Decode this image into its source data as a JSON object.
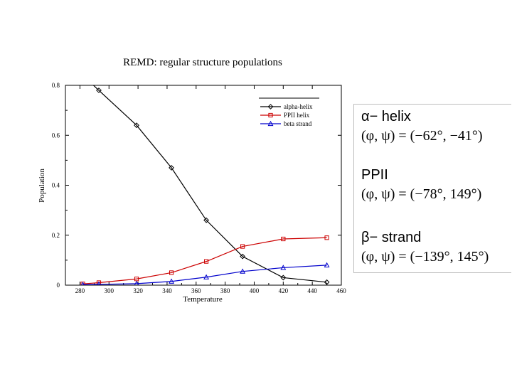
{
  "chart_data": {
    "type": "line",
    "title": "REMD: regular structure populations",
    "xlabel": "Temperature",
    "ylabel": "Population",
    "xlim": [
      270,
      460
    ],
    "ylim": [
      0,
      0.8
    ],
    "xticks": [
      "280",
      "300",
      "320",
      "340",
      "360",
      "380",
      "400",
      "420",
      "440",
      "460"
    ],
    "yticks": [
      "0",
      "0.2",
      "0.4",
      "0.6",
      "0.8"
    ],
    "legend_position": "top-right",
    "series": [
      {
        "name": "alpha-helix",
        "color": "#000000",
        "marker": "diamond",
        "x": [
          282,
          293,
          319,
          343,
          367,
          392,
          420,
          450
        ],
        "y": [
          0.84,
          0.78,
          0.64,
          0.47,
          0.26,
          0.115,
          0.03,
          0.012
        ]
      },
      {
        "name": "PPII helix",
        "color": "#cc0000",
        "marker": "square",
        "x": [
          282,
          293,
          319,
          343,
          367,
          392,
          420,
          450
        ],
        "y": [
          0.005,
          0.01,
          0.025,
          0.05,
          0.095,
          0.155,
          0.185,
          0.19
        ]
      },
      {
        "name": "beta strand",
        "color": "#0000cc",
        "marker": "triangle",
        "x": [
          282,
          293,
          319,
          343,
          367,
          392,
          420,
          450
        ],
        "y": [
          0.002,
          0.003,
          0.006,
          0.015,
          0.032,
          0.055,
          0.07,
          0.08
        ]
      }
    ]
  },
  "notes": [
    {
      "name": "alpha",
      "line1": "α− helix",
      "line2": "(φ, ψ) = (−62°, −41°)"
    },
    {
      "name": "ppii",
      "line1": "PPII",
      "line2": "(φ, ψ) = (−78°, 149°)"
    },
    {
      "name": "beta",
      "line1": "β− strand",
      "line2": "(φ, ψ) = (−139°, 145°)"
    }
  ]
}
